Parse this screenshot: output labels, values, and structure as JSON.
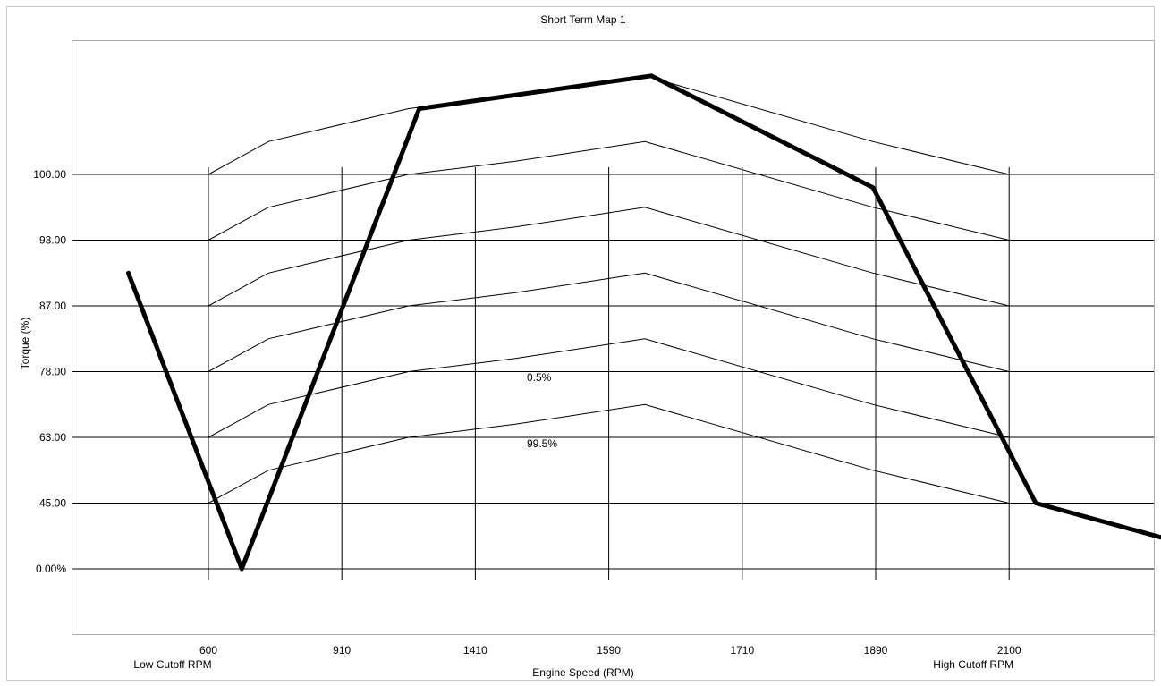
{
  "chart_data": {
    "type": "line",
    "title": "Short Term Map 1",
    "xlabel": "Engine Speed (RPM)",
    "ylabel": "Torque (%)",
    "x_ticks": [
      "600",
      "910",
      "1410",
      "1590",
      "1710",
      "1890",
      "2100"
    ],
    "y_ticks": [
      "0.00%",
      "45.00",
      "63.00",
      "78.00",
      "87.00",
      "93.00",
      "100.00"
    ],
    "x_tick_sublabels": {
      "600": "Low Cutoff RPM",
      "2100": "High Cutoff RPM"
    },
    "grid": "on",
    "annotations": [
      "0.5%",
      "99.5%"
    ],
    "colors": {
      "line": "#000000",
      "background": "#ffffff"
    },
    "limit_curve": {
      "x_index": [
        -0.6,
        0.25,
        1.58,
        3.32,
        4.98,
        6.2,
        8
      ],
      "y_index": [
        4.5,
        0,
        7.0,
        7.5,
        5.8,
        1.0,
        -0.0
      ]
    },
    "inner_curves": [
      {
        "x_index": [
          0,
          0.45,
          1.5,
          2.3,
          3.27,
          4.98,
          6
        ],
        "y_index": [
          6,
          6.5,
          7,
          7.2,
          7.5,
          6.5,
          6
        ]
      },
      {
        "x_index": [
          0,
          0.45,
          1.5,
          2.3,
          3.27,
          4.98,
          6
        ],
        "y_index": [
          5,
          5.5,
          6,
          6.2,
          6.5,
          5.5,
          5
        ]
      },
      {
        "x_index": [
          0,
          0.45,
          1.5,
          2.3,
          3.27,
          4.98,
          6
        ],
        "y_index": [
          4,
          4.5,
          5,
          5.2,
          5.5,
          4.5,
          4
        ]
      },
      {
        "x_index": [
          0,
          0.45,
          1.5,
          2.3,
          3.27,
          4.98,
          6
        ],
        "y_index": [
          3,
          3.5,
          4,
          4.2,
          4.5,
          3.5,
          3
        ]
      },
      {
        "x_index": [
          0,
          0.45,
          1.5,
          2.3,
          3.27,
          4.98,
          6
        ],
        "y_index": [
          2,
          2.5,
          3,
          3.2,
          3.5,
          2.5,
          2
        ]
      },
      {
        "x_index": [
          0,
          0.45,
          1.5,
          2.3,
          3.27,
          4.98,
          6
        ],
        "y_index": [
          1,
          1.5,
          2,
          2.2,
          2.5,
          1.5,
          1
        ]
      }
    ]
  }
}
